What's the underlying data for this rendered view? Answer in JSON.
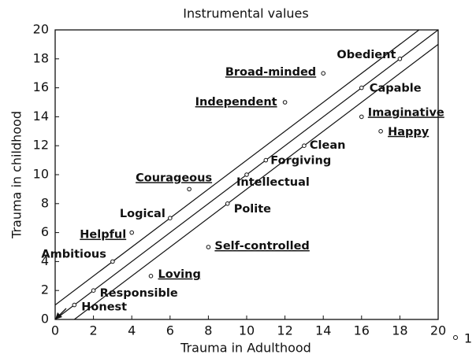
{
  "chart_data": {
    "type": "scatter",
    "title": "Instrumental values",
    "x_label": "Trauma in Adulthood",
    "y_label": "Trauma in childhood",
    "xlim": [
      0,
      20
    ],
    "ylim": [
      0,
      20
    ],
    "xticks": [
      0,
      2,
      4,
      6,
      8,
      10,
      12,
      14,
      16,
      18,
      20
    ],
    "yticks": [
      0,
      2,
      4,
      6,
      8,
      10,
      12,
      14,
      16,
      18,
      20
    ],
    "series": [
      {
        "name": "1",
        "color": "#111111",
        "x": [
          1,
          2,
          5,
          3,
          8,
          4,
          6,
          9,
          7,
          10,
          11,
          13,
          17,
          16,
          12,
          16,
          14,
          18
        ],
        "values": [
          1,
          2,
          3,
          4,
          5,
          6,
          7,
          8,
          9,
          10,
          11,
          12,
          13,
          14,
          15,
          16,
          17,
          18
        ],
        "labels": [
          "Honest",
          "Responsible",
          "Loving",
          "Ambitious",
          "Self-controlled",
          "Helpful",
          "Logical",
          "Polite",
          "Courageous",
          "Intellectual",
          "Forgiving",
          "Clean",
          "Happy",
          "Imaginative",
          "Independent",
          "Capable",
          "Broad-minded",
          "Obedient"
        ],
        "underline": [
          false,
          false,
          true,
          false,
          true,
          true,
          false,
          false,
          true,
          false,
          false,
          false,
          true,
          true,
          true,
          false,
          true,
          false
        ]
      }
    ],
    "lines": [
      {
        "x": [
          0,
          19
        ],
        "y": [
          1,
          20
        ]
      },
      {
        "x": [
          0,
          20
        ],
        "y": [
          0,
          20
        ]
      },
      {
        "x": [
          1,
          20
        ],
        "y": [
          0,
          19
        ]
      }
    ]
  }
}
